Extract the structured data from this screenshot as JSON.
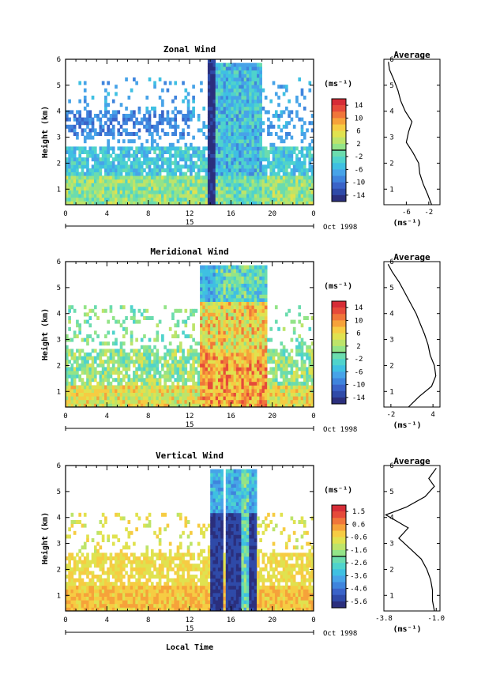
{
  "colors": {
    "scale": [
      "#2b2f7d",
      "#2f4aa8",
      "#3a63c8",
      "#3f84dd",
      "#47a3e8",
      "#3fc0e2",
      "#4fd3cc",
      "#6bdcae",
      "#93e488",
      "#bde46a",
      "#e0e24f",
      "#f6cc43",
      "#f6a23a",
      "#f0763a",
      "#e64a3a",
      "#d62c36"
    ]
  },
  "footer": {
    "xlabel": "Local Time"
  },
  "chart_data": [
    {
      "type": "heatmap",
      "title": "Zonal Wind",
      "ylabel": "Height (km)",
      "xlim": [
        0,
        24
      ],
      "ylim": [
        0.4,
        6
      ],
      "x_ticks": [
        "0",
        "4",
        "8",
        "12",
        "16",
        "20",
        "0"
      ],
      "y_ticks": [
        "1",
        "2",
        "3",
        "4",
        "5",
        "6"
      ],
      "date_label": "15",
      "month_label": "Oct 1998",
      "colorbar": {
        "unit": "(ms⁻¹)",
        "labels": [
          "14",
          "10",
          "6",
          "2",
          "-2",
          "-6",
          "-10",
          "-14"
        ],
        "range": [
          -14,
          14
        ]
      },
      "average": {
        "title": "Average",
        "xlim": [
          -10,
          0
        ],
        "x_ticks": [
          "-6",
          "-2"
        ],
        "xlabel": "(ms⁻¹)",
        "profile": [
          [
            -1.5,
            0.4
          ],
          [
            -2.2,
            0.8
          ],
          [
            -3.0,
            1.2
          ],
          [
            -3.6,
            1.6
          ],
          [
            -3.8,
            2.0
          ],
          [
            -4.8,
            2.4
          ],
          [
            -6.0,
            2.8
          ],
          [
            -5.6,
            3.2
          ],
          [
            -5.0,
            3.6
          ],
          [
            -6.2,
            4.0
          ],
          [
            -7.0,
            4.4
          ],
          [
            -7.5,
            4.8
          ],
          [
            -8.2,
            5.2
          ],
          [
            -9.0,
            5.6
          ],
          [
            -9.2,
            5.9
          ]
        ]
      }
    },
    {
      "type": "heatmap",
      "title": "Meridional Wind",
      "ylabel": "Height (km)",
      "xlim": [
        0,
        24
      ],
      "ylim": [
        0.4,
        6
      ],
      "x_ticks": [
        "0",
        "4",
        "8",
        "12",
        "16",
        "20",
        "0"
      ],
      "y_ticks": [
        "1",
        "2",
        "3",
        "4",
        "5",
        "6"
      ],
      "date_label": "15",
      "month_label": "Oct 1998",
      "colorbar": {
        "unit": "(ms⁻¹)",
        "labels": [
          "14",
          "10",
          "6",
          "2",
          "-2",
          "-6",
          "-10",
          "-14"
        ],
        "range": [
          -14,
          14
        ]
      },
      "average": {
        "title": "Average",
        "xlim": [
          -3,
          5
        ],
        "x_ticks": [
          "-2",
          "4"
        ],
        "xlabel": "(ms⁻¹)",
        "profile": [
          [
            0.5,
            0.4
          ],
          [
            2.0,
            0.8
          ],
          [
            3.8,
            1.2
          ],
          [
            4.4,
            1.6
          ],
          [
            4.2,
            2.0
          ],
          [
            3.6,
            2.4
          ],
          [
            3.3,
            2.8
          ],
          [
            2.8,
            3.2
          ],
          [
            2.2,
            3.6
          ],
          [
            1.6,
            4.0
          ],
          [
            0.8,
            4.4
          ],
          [
            0.0,
            4.8
          ],
          [
            -0.8,
            5.2
          ],
          [
            -1.8,
            5.6
          ],
          [
            -2.4,
            5.9
          ]
        ]
      }
    },
    {
      "type": "heatmap",
      "title": "Vertical Wind",
      "ylabel": "Height (km)",
      "xlabel": "Local Time",
      "xlim": [
        0,
        24
      ],
      "ylim": [
        0.4,
        6
      ],
      "x_ticks": [
        "0",
        "4",
        "8",
        "12",
        "16",
        "20",
        "0"
      ],
      "y_ticks": [
        "1",
        "2",
        "3",
        "4",
        "5",
        "6"
      ],
      "date_label": "15",
      "month_label": "Oct 1998",
      "colorbar": {
        "unit": "(ms⁻¹)",
        "labels": [
          "1.5",
          "0.6",
          "-0.6",
          "-1.6",
          "-2.6",
          "-3.6",
          "-4.6",
          "-5.6"
        ],
        "range": [
          -6,
          2
        ]
      },
      "average": {
        "title": "Average",
        "xlim": [
          -3.8,
          -0.8
        ],
        "x_ticks": [
          "-3.8",
          "-1.0"
        ],
        "xlabel": "(ms⁻¹)",
        "profile": [
          [
            -1.1,
            0.4
          ],
          [
            -1.2,
            0.8
          ],
          [
            -1.2,
            1.2
          ],
          [
            -1.3,
            1.6
          ],
          [
            -1.5,
            2.0
          ],
          [
            -1.8,
            2.4
          ],
          [
            -2.4,
            2.8
          ],
          [
            -3.0,
            3.2
          ],
          [
            -2.5,
            3.6
          ],
          [
            -3.7,
            4.1
          ],
          [
            -2.6,
            4.4
          ],
          [
            -1.6,
            4.8
          ],
          [
            -1.1,
            5.2
          ],
          [
            -1.4,
            5.5
          ],
          [
            -1.0,
            5.9
          ]
        ]
      }
    }
  ]
}
